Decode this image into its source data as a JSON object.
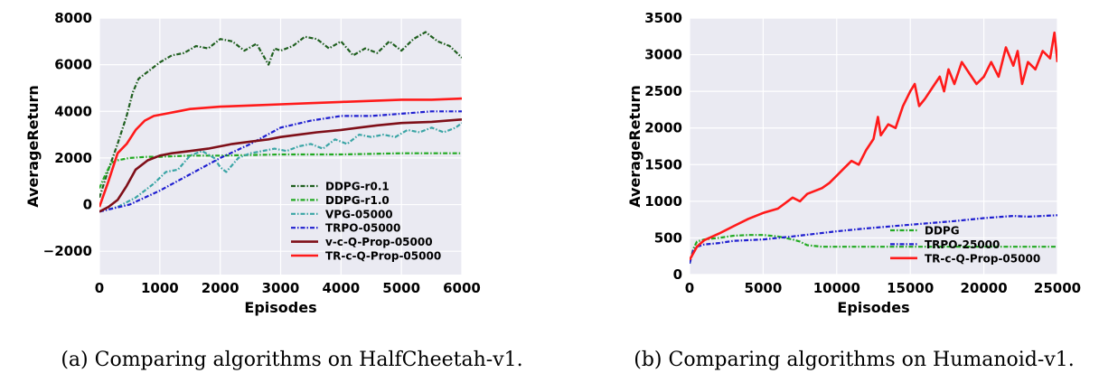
{
  "chart_data": [
    {
      "type": "line",
      "xlabel": "Episodes",
      "ylabel": "AverageReturn",
      "xlim": [
        0,
        6000
      ],
      "ylim": [
        -3000,
        8000
      ],
      "xticks": [
        0,
        1000,
        2000,
        3000,
        4000,
        5000,
        6000
      ],
      "yticks": [
        -2000,
        0,
        2000,
        4000,
        6000,
        8000
      ],
      "xtick_labels": [
        "0",
        "1000",
        "2000",
        "3000",
        "4000",
        "5000",
        "6000"
      ],
      "ytick_labels": [
        "−2000",
        "0",
        "2000",
        "4000",
        "6000",
        "8000"
      ],
      "grid": true,
      "legend_position": "lower-right",
      "caption": "(a) Comparing algorithms on HalfCheetah-v1.",
      "series": [
        {
          "name": "DDPG-r0.1",
          "color": "#1f5f1f",
          "style": "dashdot",
          "points": [
            [
              0,
              300
            ],
            [
              150,
              1500
            ],
            [
              300,
              2600
            ],
            [
              450,
              3800
            ],
            [
              550,
              4800
            ],
            [
              650,
              5400
            ],
            [
              800,
              5700
            ],
            [
              1000,
              6100
            ],
            [
              1200,
              6400
            ],
            [
              1400,
              6500
            ],
            [
              1600,
              6800
            ],
            [
              1800,
              6700
            ],
            [
              2000,
              7100
            ],
            [
              2200,
              7000
            ],
            [
              2400,
              6600
            ],
            [
              2600,
              6900
            ],
            [
              2800,
              6000
            ],
            [
              2900,
              6700
            ],
            [
              3000,
              6600
            ],
            [
              3200,
              6800
            ],
            [
              3400,
              7200
            ],
            [
              3600,
              7100
            ],
            [
              3800,
              6700
            ],
            [
              4000,
              7000
            ],
            [
              4200,
              6400
            ],
            [
              4400,
              6700
            ],
            [
              4600,
              6500
            ],
            [
              4800,
              7000
            ],
            [
              5000,
              6600
            ],
            [
              5200,
              7100
            ],
            [
              5400,
              7400
            ],
            [
              5600,
              7000
            ],
            [
              5800,
              6800
            ],
            [
              6000,
              6300
            ]
          ]
        },
        {
          "name": "DDPG-r1.0",
          "color": "#22aa22",
          "style": "dashdot",
          "points": [
            [
              0,
              700
            ],
            [
              100,
              1300
            ],
            [
              200,
              1800
            ],
            [
              300,
              1900
            ],
            [
              500,
              2000
            ],
            [
              800,
              2050
            ],
            [
              1000,
              2050
            ],
            [
              1500,
              2100
            ],
            [
              2000,
              2100
            ],
            [
              3000,
              2150
            ],
            [
              4000,
              2150
            ],
            [
              5000,
              2200
            ],
            [
              6000,
              2200
            ]
          ]
        },
        {
          "name": "VPG-05000",
          "color": "#3aa5a5",
          "style": "dashdot",
          "points": [
            [
              0,
              -300
            ],
            [
              300,
              -100
            ],
            [
              600,
              300
            ],
            [
              900,
              900
            ],
            [
              1100,
              1400
            ],
            [
              1300,
              1500
            ],
            [
              1500,
              2100
            ],
            [
              1700,
              2300
            ],
            [
              1900,
              2000
            ],
            [
              2000,
              1600
            ],
            [
              2100,
              1400
            ],
            [
              2300,
              2000
            ],
            [
              2500,
              2200
            ],
            [
              2700,
              2300
            ],
            [
              2900,
              2400
            ],
            [
              3100,
              2300
            ],
            [
              3300,
              2500
            ],
            [
              3500,
              2600
            ],
            [
              3700,
              2400
            ],
            [
              3900,
              2800
            ],
            [
              4100,
              2600
            ],
            [
              4300,
              3000
            ],
            [
              4500,
              2900
            ],
            [
              4700,
              3000
            ],
            [
              4900,
              2900
            ],
            [
              5100,
              3200
            ],
            [
              5300,
              3100
            ],
            [
              5500,
              3300
            ],
            [
              5700,
              3100
            ],
            [
              5900,
              3300
            ],
            [
              6000,
              3500
            ]
          ]
        },
        {
          "name": "TRPO-05000",
          "color": "#1f1fd0",
          "style": "dashdot",
          "points": [
            [
              0,
              -300
            ],
            [
              500,
              0
            ],
            [
              1000,
              600
            ],
            [
              1500,
              1300
            ],
            [
              2000,
              2000
            ],
            [
              2500,
              2600
            ],
            [
              3000,
              3300
            ],
            [
              3500,
              3600
            ],
            [
              4000,
              3800
            ],
            [
              4500,
              3800
            ],
            [
              5000,
              3900
            ],
            [
              5500,
              4000
            ],
            [
              6000,
              4000
            ]
          ]
        },
        {
          "name": "v-c-Q-Prop-05000",
          "color": "#7f0f18",
          "style": "solid",
          "points": [
            [
              0,
              -300
            ],
            [
              150,
              -100
            ],
            [
              300,
              200
            ],
            [
              450,
              800
            ],
            [
              600,
              1500
            ],
            [
              800,
              1900
            ],
            [
              1000,
              2100
            ],
            [
              1200,
              2200
            ],
            [
              1500,
              2300
            ],
            [
              1800,
              2400
            ],
            [
              2000,
              2500
            ],
            [
              2200,
              2600
            ],
            [
              2500,
              2700
            ],
            [
              2800,
              2800
            ],
            [
              3000,
              2900
            ],
            [
              3300,
              3000
            ],
            [
              3600,
              3100
            ],
            [
              4000,
              3200
            ],
            [
              4300,
              3300
            ],
            [
              4600,
              3400
            ],
            [
              5000,
              3500
            ],
            [
              5500,
              3550
            ],
            [
              6000,
              3650
            ]
          ]
        },
        {
          "name": "TR-c-Q-Prop-05000",
          "color": "#ff1a1a",
          "style": "solid",
          "points": [
            [
              0,
              -100
            ],
            [
              150,
              1000
            ],
            [
              300,
              2200
            ],
            [
              450,
              2600
            ],
            [
              600,
              3200
            ],
            [
              750,
              3600
            ],
            [
              900,
              3800
            ],
            [
              1100,
              3900
            ],
            [
              1300,
              4000
            ],
            [
              1500,
              4100
            ],
            [
              2000,
              4200
            ],
            [
              2500,
              4250
            ],
            [
              3000,
              4300
            ],
            [
              3500,
              4350
            ],
            [
              4000,
              4400
            ],
            [
              4500,
              4450
            ],
            [
              5000,
              4500
            ],
            [
              5500,
              4500
            ],
            [
              6000,
              4550
            ]
          ]
        }
      ]
    },
    {
      "type": "line",
      "xlabel": "Episodes",
      "ylabel": "AverageReturn",
      "xlim": [
        0,
        25000
      ],
      "ylim": [
        0,
        3500
      ],
      "xticks": [
        0,
        5000,
        10000,
        15000,
        20000,
        25000
      ],
      "yticks": [
        0,
        500,
        1000,
        1500,
        2000,
        2500,
        3000,
        3500
      ],
      "xtick_labels": [
        "0",
        "5000",
        "10000",
        "15000",
        "20000",
        "25000"
      ],
      "ytick_labels": [
        "0",
        "500",
        "1000",
        "1500",
        "2000",
        "2500",
        "3000",
        "3500"
      ],
      "grid": true,
      "legend_position": "lower-right",
      "caption": "(b) Comparing algorithms on Humanoid-v1.",
      "series": [
        {
          "name": "DDPG",
          "color": "#22aa22",
          "style": "dashdot",
          "points": [
            [
              0,
              150
            ],
            [
              250,
              350
            ],
            [
              500,
              450
            ],
            [
              1000,
              480
            ],
            [
              2000,
              500
            ],
            [
              3000,
              530
            ],
            [
              4000,
              540
            ],
            [
              5000,
              540
            ],
            [
              6000,
              520
            ],
            [
              7000,
              480
            ],
            [
              7500,
              450
            ],
            [
              8000,
              400
            ],
            [
              9000,
              380
            ],
            [
              10000,
              380
            ],
            [
              12000,
              380
            ],
            [
              15000,
              380
            ],
            [
              20000,
              380
            ],
            [
              25000,
              380
            ]
          ]
        },
        {
          "name": "TRPO-25000",
          "color": "#1f1fd0",
          "style": "dashdot",
          "points": [
            [
              0,
              150
            ],
            [
              250,
              330
            ],
            [
              500,
              380
            ],
            [
              1000,
              410
            ],
            [
              2000,
              430
            ],
            [
              3000,
              460
            ],
            [
              5000,
              480
            ],
            [
              7000,
              520
            ],
            [
              10000,
              590
            ],
            [
              12000,
              630
            ],
            [
              15000,
              680
            ],
            [
              18000,
              730
            ],
            [
              20000,
              770
            ],
            [
              22000,
              800
            ],
            [
              23000,
              790
            ],
            [
              25000,
              810
            ]
          ]
        },
        {
          "name": "TR-c-Q-Prop-05000",
          "color": "#ff1a1a",
          "style": "solid",
          "points": [
            [
              0,
              200
            ],
            [
              500,
              380
            ],
            [
              1000,
              470
            ],
            [
              2000,
              560
            ],
            [
              3000,
              660
            ],
            [
              4000,
              760
            ],
            [
              5000,
              840
            ],
            [
              6000,
              900
            ],
            [
              7000,
              1050
            ],
            [
              7500,
              1000
            ],
            [
              8000,
              1100
            ],
            [
              9000,
              1180
            ],
            [
              9500,
              1250
            ],
            [
              10000,
              1350
            ],
            [
              10500,
              1450
            ],
            [
              11000,
              1550
            ],
            [
              11500,
              1500
            ],
            [
              12000,
              1700
            ],
            [
              12500,
              1850
            ],
            [
              12800,
              2150
            ],
            [
              13000,
              1900
            ],
            [
              13500,
              2050
            ],
            [
              14000,
              2000
            ],
            [
              14500,
              2300
            ],
            [
              15000,
              2500
            ],
            [
              15300,
              2600
            ],
            [
              15600,
              2300
            ],
            [
              16000,
              2400
            ],
            [
              16500,
              2550
            ],
            [
              17000,
              2700
            ],
            [
              17300,
              2500
            ],
            [
              17600,
              2800
            ],
            [
              18000,
              2600
            ],
            [
              18500,
              2900
            ],
            [
              19000,
              2750
            ],
            [
              19500,
              2600
            ],
            [
              20000,
              2700
            ],
            [
              20500,
              2900
            ],
            [
              21000,
              2700
            ],
            [
              21500,
              3100
            ],
            [
              22000,
              2850
            ],
            [
              22300,
              3050
            ],
            [
              22600,
              2600
            ],
            [
              23000,
              2900
            ],
            [
              23500,
              2800
            ],
            [
              24000,
              3050
            ],
            [
              24500,
              2950
            ],
            [
              24800,
              3300
            ],
            [
              25000,
              2900
            ]
          ]
        }
      ]
    }
  ]
}
